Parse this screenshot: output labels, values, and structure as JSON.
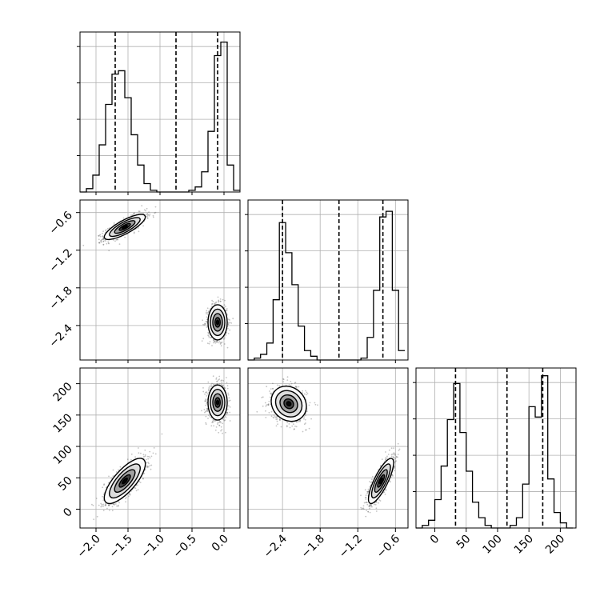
{
  "chart_data": {
    "type": "corner",
    "title": "",
    "grid": true,
    "quantile_style": "dashed",
    "colors": {
      "hist": "#000000",
      "points": "#555555",
      "grid": "#b0b0b0",
      "axes": "#000000"
    },
    "params": [
      {
        "xlim": [
          -2.25,
          0.25
        ],
        "ticks": [
          -2.0,
          -1.5,
          -1.0,
          -0.5,
          0.0
        ],
        "tick_labels": [
          "−2.0",
          "−1.5",
          "−1.0",
          "−0.5",
          "0.0"
        ],
        "modes": [
          {
            "mean": -1.55,
            "sd": 0.16,
            "weight": 0.5
          },
          {
            "mean": -0.1,
            "sd": 0.075,
            "weight": 0.5
          }
        ],
        "quantiles": [
          -1.7,
          -0.75,
          -0.1
        ],
        "hist_edges": [
          -2.25,
          -2.15,
          -2.05,
          -1.95,
          -1.85,
          -1.75,
          -1.65,
          -1.55,
          -1.45,
          -1.35,
          -1.25,
          -1.15,
          -1.05,
          -0.95,
          -0.85,
          -0.75,
          -0.65,
          -0.55,
          -0.45,
          -0.35,
          -0.25,
          -0.15,
          -0.05,
          0.05,
          0.15,
          0.25
        ],
        "hist_counts": [
          0,
          2,
          10,
          28,
          52,
          70,
          72,
          56,
          34,
          16,
          5,
          1,
          0,
          0,
          0,
          0,
          0,
          1,
          3,
          12,
          36,
          81,
          89,
          16,
          1
        ],
        "hist_ymax": 95
      },
      {
        "xlim": [
          -2.95,
          -0.4
        ],
        "ticks": [
          -2.4,
          -1.8,
          -1.2,
          -0.6
        ],
        "tick_labels": [
          "−2.4",
          "−1.8",
          "−1.2",
          "−0.6"
        ],
        "modes": [
          {
            "mean": -2.25,
            "sd": 0.14,
            "weight": 0.5
          },
          {
            "mean": -0.85,
            "sd": 0.1,
            "weight": 0.5
          }
        ],
        "quantiles": [
          -2.4,
          -1.5,
          -0.8
        ],
        "hist_edges": [
          -2.95,
          -2.85,
          -2.75,
          -2.65,
          -2.55,
          -2.45,
          -2.35,
          -2.25,
          -2.15,
          -2.05,
          -1.95,
          -1.85,
          -1.75,
          -1.65,
          -1.55,
          -1.45,
          -1.35,
          -1.25,
          -1.15,
          -1.05,
          -0.95,
          -0.85,
          -0.75,
          -0.65,
          -0.55,
          -0.45
        ],
        "hist_counts": [
          0,
          1,
          3,
          9,
          32,
          73,
          57,
          40,
          18,
          5,
          2,
          0,
          0,
          0,
          0,
          0,
          0,
          0,
          1,
          12,
          37,
          76,
          79,
          37,
          5
        ],
        "hist_ymax": 85
      },
      {
        "xlim": [
          -30,
          225
        ],
        "ticks": [
          0,
          50,
          100,
          150,
          200
        ],
        "tick_labels": [
          "0",
          "50",
          "100",
          "150",
          "200"
        ],
        "modes": [
          {
            "mean": 45,
            "sd": 18,
            "weight": 0.5
          },
          {
            "mean": 170,
            "sd": 14,
            "weight": 0.5
          }
        ],
        "quantiles": [
          33,
          115,
          172
        ],
        "hist_edges": [
          -30,
          -20,
          -10,
          0,
          10,
          20,
          30,
          40,
          50,
          60,
          70,
          80,
          90,
          100,
          110,
          120,
          130,
          140,
          150,
          160,
          170,
          180,
          190,
          200,
          210,
          220
        ],
        "hist_counts": [
          0,
          1,
          3,
          11,
          24,
          42,
          56,
          37,
          22,
          10,
          4,
          1,
          0,
          0,
          0,
          1,
          4,
          17,
          47,
          43,
          59,
          19,
          6,
          2,
          0
        ],
        "hist_ymax": 62
      }
    ],
    "pairs": [
      {
        "row": 1,
        "col": 0,
        "modes": [
          {
            "mx": -1.55,
            "my": -0.83,
            "sx": 0.16,
            "sy": 0.1,
            "rho": 0.8
          },
          {
            "mx": -0.1,
            "my": -2.35,
            "sx": 0.075,
            "sy": 0.14,
            "rho": 0.0
          }
        ]
      },
      {
        "row": 2,
        "col": 0,
        "modes": [
          {
            "mx": -1.55,
            "my": 45,
            "sx": 0.16,
            "sy": 18,
            "rho": 0.75
          },
          {
            "mx": -0.1,
            "my": 170,
            "sx": 0.075,
            "sy": 14,
            "rho": 0.0
          }
        ]
      },
      {
        "row": 2,
        "col": 1,
        "modes": [
          {
            "mx": -2.3,
            "my": 168,
            "sx": 0.14,
            "sy": 14,
            "rho": -0.15
          },
          {
            "mx": -0.83,
            "my": 45,
            "sx": 0.1,
            "sy": 18,
            "rho": 0.8
          }
        ]
      }
    ]
  }
}
